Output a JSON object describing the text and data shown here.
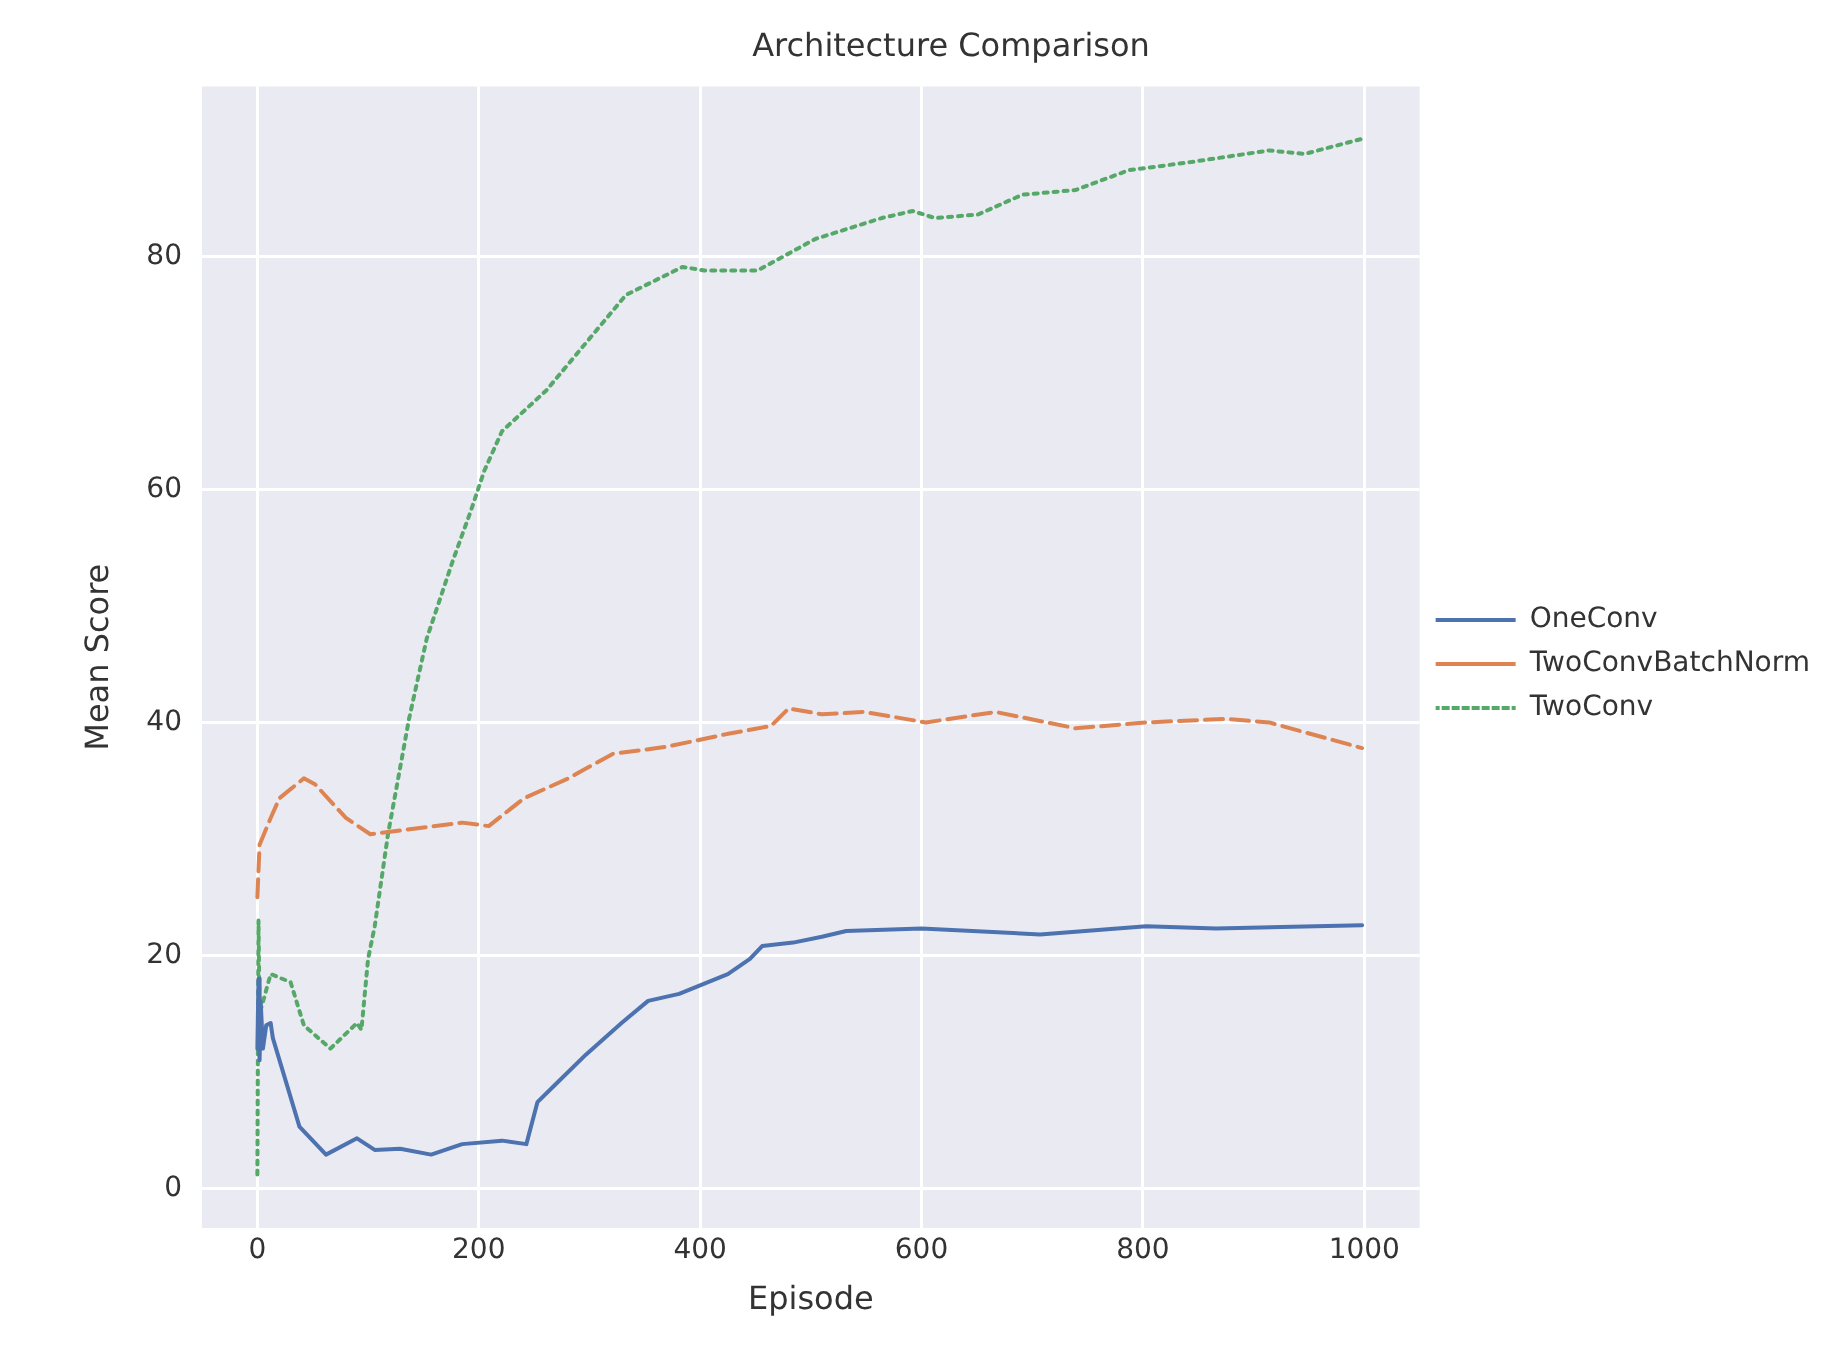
{
  "chart_data": {
    "type": "line",
    "title": "Architecture Comparison",
    "xlabel": "Episode",
    "ylabel": "Mean Score",
    "xlim": [
      -50,
      1050
    ],
    "xticks": [
      0,
      200,
      400,
      600,
      800,
      1000
    ],
    "ylim": [
      -3.4,
      94.6
    ],
    "yticks": [
      0,
      20,
      40,
      60,
      80
    ],
    "grid": true,
    "legend": "right",
    "marker": "none",
    "series": [
      {
        "name": "OneConv",
        "color": "#4c72b0",
        "line_style": "solid",
        "x": [
          0,
          1,
          2,
          3,
          5,
          8,
          12,
          14,
          38,
          62,
          90,
          106,
          129,
          157,
          185,
          221,
          243,
          253,
          269,
          297,
          329,
          353,
          381,
          425,
          445,
          456,
          484,
          510,
          532,
          600,
          707,
          803,
          866,
          998
        ],
        "values": [
          12,
          18,
          11,
          16,
          12,
          14,
          14.2,
          12.9,
          5.3,
          2.9,
          4.3,
          3.3,
          3.4,
          2.9,
          3.8,
          4.1,
          3.8,
          7.4,
          8.9,
          11.5,
          14.2,
          16.1,
          16.7,
          18.4,
          19.7,
          20.8,
          21.1,
          21.6,
          22.1,
          22.3,
          21.8,
          22.5,
          22.3,
          22.6
        ]
      },
      {
        "name": "TwoConvBatchNorm",
        "color": "#dd8452",
        "line_style": "dashed",
        "x": [
          0,
          2,
          12,
          20,
          42,
          52,
          80,
          102,
          185,
          209,
          241,
          281,
          321,
          369,
          424,
          464,
          480,
          510,
          548,
          604,
          667,
          739,
          803,
          875,
          914,
          998
        ],
        "values": [
          25,
          29.5,
          31.8,
          33.5,
          35.2,
          34.7,
          31.8,
          30.4,
          31.4,
          31.1,
          33.5,
          35.2,
          37.3,
          37.9,
          39,
          39.7,
          41.2,
          40.7,
          40.9,
          40,
          40.9,
          39.5,
          40,
          40.3,
          40,
          37.8
        ]
      },
      {
        "name": "TwoConv",
        "color": "#55a868",
        "line_style": "dotted",
        "x": [
          0,
          1,
          2,
          5,
          12,
          30,
          42,
          66,
          90,
          94,
          100,
          106,
          118,
          137,
          153,
          177,
          193,
          205,
          221,
          261,
          297,
          333,
          384,
          404,
          452,
          504,
          564,
          592,
          612,
          651,
          691,
          739,
          787,
          843,
          914,
          946,
          998
        ],
        "values": [
          1.2,
          23,
          15,
          16,
          18.4,
          17.7,
          14,
          12,
          14.2,
          13.6,
          19.7,
          22.5,
          30.4,
          40.3,
          47.2,
          54,
          58.2,
          61.6,
          65,
          68.5,
          72.6,
          76.7,
          79.1,
          78.8,
          78.8,
          81.5,
          83.3,
          83.9,
          83.3,
          83.6,
          85.3,
          85.7,
          87.4,
          88.1,
          89.1,
          88.8,
          90.1
        ]
      }
    ]
  }
}
